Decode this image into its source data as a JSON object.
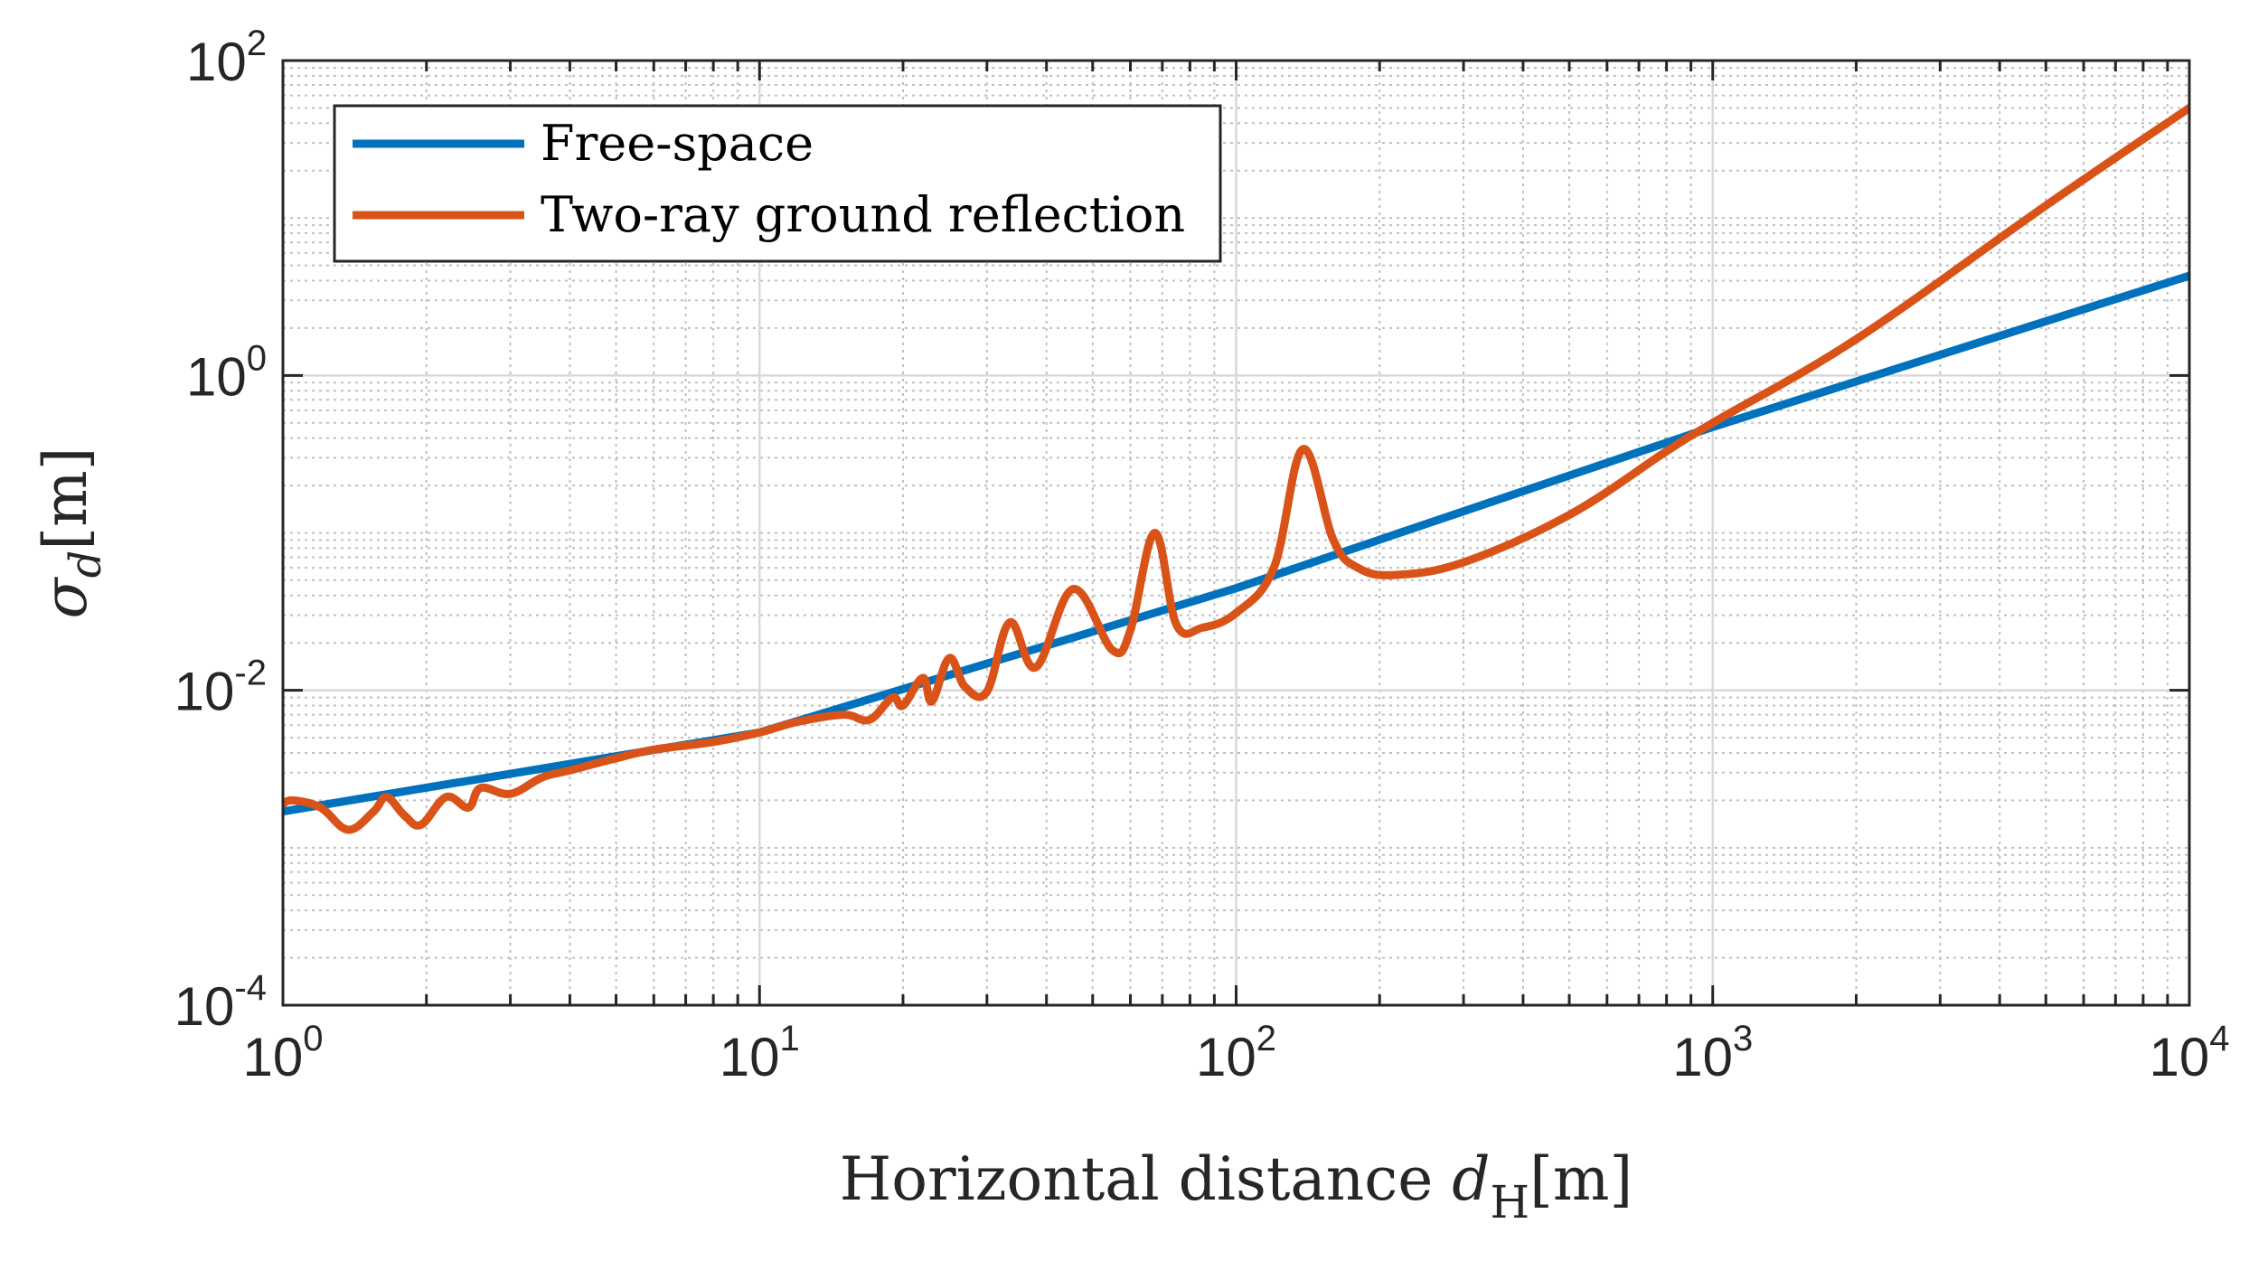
{
  "chart_data": {
    "type": "line",
    "xscale": "log",
    "yscale": "log",
    "xlim": [
      1,
      10000
    ],
    "ylim": [
      0.0001,
      100
    ],
    "grid": true,
    "minor_grid": true,
    "legend_position": "top-left",
    "xlabel": {
      "prefix": "Horizontal distance ",
      "symbol": "d",
      "subscript": "H",
      "unit": "[m]"
    },
    "ylabel": {
      "symbol": "σ",
      "subscript": "d",
      "unit": "[m]"
    },
    "xticks": [
      {
        "value": 1,
        "base": "10",
        "exp": "0"
      },
      {
        "value": 10,
        "base": "10",
        "exp": "1"
      },
      {
        "value": 100,
        "base": "10",
        "exp": "2"
      },
      {
        "value": 1000,
        "base": "10",
        "exp": "3"
      },
      {
        "value": 10000,
        "base": "10",
        "exp": "4"
      }
    ],
    "yticks": [
      {
        "value": 0.0001,
        "base": "10",
        "exp": "-4"
      },
      {
        "value": 0.01,
        "base": "10",
        "exp": "-2"
      },
      {
        "value": 1,
        "base": "10",
        "exp": "0"
      },
      {
        "value": 100,
        "base": "10",
        "exp": "2"
      }
    ],
    "series": [
      {
        "name": "Free-space",
        "color": "#0072BD",
        "x": [
          1,
          10,
          100,
          1000,
          10000
        ],
        "y": [
          0.0017,
          0.0054,
          0.0445,
          0.47,
          4.3
        ]
      },
      {
        "name": "Two-ray ground reflection",
        "color": "#D95319",
        "x": [
          1,
          1.05,
          1.2,
          1.37,
          1.55,
          1.65,
          1.8,
          1.95,
          2.2,
          2.45,
          2.6,
          3.0,
          3.5,
          4.0,
          5.0,
          6.0,
          8.0,
          10,
          12,
          15,
          17,
          19,
          20,
          22,
          23,
          25,
          27,
          30,
          33.5,
          38,
          45.5,
          55,
          60,
          67.5,
          75,
          85,
          100,
          120,
          138,
          160,
          180,
          215,
          300,
          500,
          800,
          1000,
          2000,
          5000,
          10000
        ],
        "y": [
          0.0019,
          0.002,
          0.0018,
          0.0013,
          0.0017,
          0.0021,
          0.0016,
          0.0014,
          0.0021,
          0.0018,
          0.0024,
          0.0022,
          0.0028,
          0.0031,
          0.0037,
          0.0042,
          0.0047,
          0.0054,
          0.0063,
          0.007,
          0.0065,
          0.009,
          0.008,
          0.012,
          0.0085,
          0.016,
          0.0105,
          0.0098,
          0.027,
          0.014,
          0.044,
          0.018,
          0.024,
          0.1,
          0.026,
          0.025,
          0.031,
          0.06,
          0.34,
          0.09,
          0.06,
          0.054,
          0.065,
          0.13,
          0.33,
          0.5,
          1.7,
          12,
          50
        ]
      }
    ]
  }
}
